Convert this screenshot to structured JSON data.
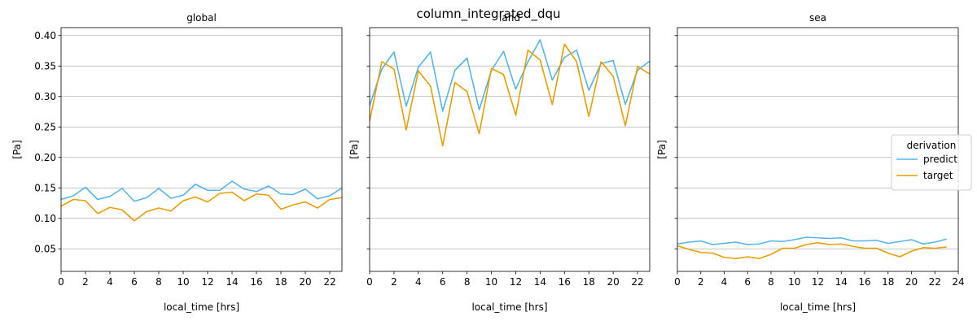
{
  "figure": {
    "title": "column_integrated_dqu"
  },
  "colors": {
    "predict": "#56b4e9",
    "target": "#e69f00",
    "grid": "#b0b0b0"
  },
  "legend": {
    "title": "derivation",
    "placement": "center-right",
    "entries": [
      "predict",
      "target"
    ]
  },
  "chart_data": [
    {
      "type": "line",
      "title": "global",
      "xlabel": "local_time [hrs]",
      "ylabel": "[Pa]",
      "xlim": [
        0,
        23
      ],
      "ylim": [
        0.013,
        0.413
      ],
      "xticks": [
        0,
        2,
        4,
        6,
        8,
        10,
        12,
        14,
        16,
        18,
        20,
        22
      ],
      "yticks": [
        0.05,
        0.1,
        0.15,
        0.2,
        0.25,
        0.3,
        0.35,
        0.4
      ],
      "ytick_labels": [
        "0.05",
        "0.10",
        "0.15",
        "0.20",
        "0.25",
        "0.30",
        "0.35",
        "0.40"
      ],
      "show_yticklabels": true,
      "grid": "y",
      "x": [
        0,
        1,
        2,
        3,
        4,
        5,
        6,
        7,
        8,
        9,
        10,
        11,
        12,
        13,
        14,
        15,
        16,
        17,
        18,
        19,
        20,
        21,
        22,
        23
      ],
      "series": [
        {
          "name": "predict",
          "values": [
            0.131,
            0.137,
            0.151,
            0.131,
            0.136,
            0.149,
            0.128,
            0.134,
            0.149,
            0.133,
            0.138,
            0.156,
            0.146,
            0.146,
            0.161,
            0.148,
            0.144,
            0.153,
            0.14,
            0.139,
            0.148,
            0.132,
            0.137,
            0.15
          ]
        },
        {
          "name": "target",
          "values": [
            0.12,
            0.131,
            0.129,
            0.108,
            0.118,
            0.114,
            0.096,
            0.111,
            0.117,
            0.112,
            0.129,
            0.135,
            0.127,
            0.141,
            0.143,
            0.129,
            0.14,
            0.138,
            0.115,
            0.122,
            0.127,
            0.117,
            0.131,
            0.134
          ]
        }
      ]
    },
    {
      "type": "line",
      "title": "land",
      "xlabel": "local_time [hrs]",
      "ylabel": "[Pa]",
      "xlim": [
        0,
        23
      ],
      "ylim": [
        0.013,
        0.413
      ],
      "xticks": [
        0,
        2,
        4,
        6,
        8,
        10,
        12,
        14,
        16,
        18,
        20,
        22
      ],
      "yticks": [
        0.05,
        0.1,
        0.15,
        0.2,
        0.25,
        0.3,
        0.35,
        0.4
      ],
      "ytick_labels": [],
      "show_yticklabels": false,
      "grid": "y",
      "x": [
        0,
        1,
        2,
        3,
        4,
        5,
        6,
        7,
        8,
        9,
        10,
        11,
        12,
        13,
        14,
        15,
        16,
        17,
        18,
        19,
        20,
        21,
        22,
        23
      ],
      "series": [
        {
          "name": "predict",
          "values": [
            0.285,
            0.345,
            0.373,
            0.284,
            0.348,
            0.373,
            0.276,
            0.343,
            0.363,
            0.278,
            0.343,
            0.374,
            0.312,
            0.357,
            0.393,
            0.327,
            0.364,
            0.376,
            0.31,
            0.354,
            0.359,
            0.287,
            0.343,
            0.358
          ]
        },
        {
          "name": "target",
          "values": [
            0.26,
            0.357,
            0.345,
            0.245,
            0.342,
            0.317,
            0.219,
            0.323,
            0.308,
            0.239,
            0.346,
            0.336,
            0.269,
            0.376,
            0.36,
            0.287,
            0.386,
            0.357,
            0.267,
            0.357,
            0.333,
            0.252,
            0.349,
            0.337
          ]
        }
      ]
    },
    {
      "type": "line",
      "title": "sea",
      "xlabel": "local_time [hrs]",
      "ylabel": "[Pa]",
      "xlim": [
        0,
        24
      ],
      "ylim": [
        0.013,
        0.413
      ],
      "xticks": [
        0,
        2,
        4,
        6,
        8,
        10,
        12,
        14,
        16,
        18,
        20,
        22,
        24
      ],
      "yticks": [
        0.05,
        0.1,
        0.15,
        0.2,
        0.25,
        0.3,
        0.35,
        0.4
      ],
      "ytick_labels": [],
      "show_yticklabels": false,
      "grid": "y",
      "x": [
        0,
        1,
        2,
        3,
        4,
        5,
        6,
        7,
        8,
        9,
        10,
        11,
        12,
        13,
        14,
        15,
        16,
        17,
        18,
        19,
        20,
        21,
        22,
        23
      ],
      "series": [
        {
          "name": "predict",
          "values": [
            0.058,
            0.061,
            0.063,
            0.057,
            0.059,
            0.061,
            0.057,
            0.058,
            0.063,
            0.062,
            0.065,
            0.069,
            0.068,
            0.067,
            0.068,
            0.063,
            0.063,
            0.064,
            0.059,
            0.062,
            0.065,
            0.058,
            0.061,
            0.066
          ]
        },
        {
          "name": "target",
          "values": [
            0.055,
            0.049,
            0.044,
            0.043,
            0.036,
            0.034,
            0.037,
            0.034,
            0.041,
            0.051,
            0.051,
            0.057,
            0.06,
            0.057,
            0.058,
            0.054,
            0.051,
            0.051,
            0.043,
            0.037,
            0.046,
            0.052,
            0.051,
            0.053
          ]
        }
      ]
    }
  ]
}
